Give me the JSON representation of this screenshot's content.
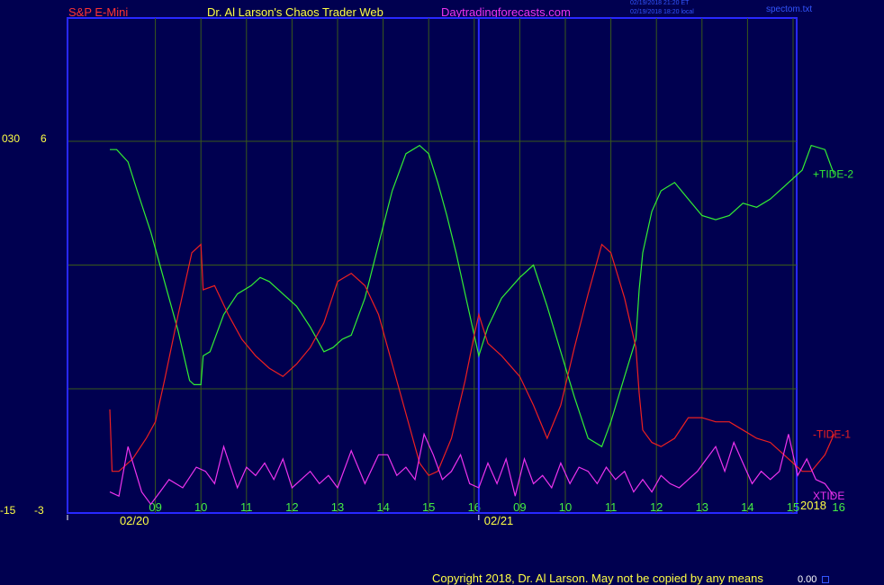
{
  "header": {
    "symbol": "S&P E-Mini",
    "author": "Dr. Al Larson's Chaos Trader Web",
    "site": "Daytradingforecasts.com",
    "timestamp_et": "02/19/2018 21:20 ET",
    "timestamp_local": "02/19/2018 18:20 local",
    "filename": "spectom.txt"
  },
  "left_labels": {
    "top_left": "030",
    "top_right": "6",
    "bottom_left": "-15",
    "bottom_right": "-3"
  },
  "footer": {
    "copyright": "Copyright 2018, Dr. Al Larson. May not be copied by any means",
    "value": "0.00"
  },
  "colors": {
    "background": "#000050",
    "frame": "#2828ff",
    "grid": "#3a5a1a",
    "tide2": "#33ee33",
    "tide1": "#ee2020",
    "xtide": "#ee33ee",
    "axis_text": "#44ee44",
    "label_text": "#ffff44"
  },
  "chart_data": {
    "type": "line",
    "ylim": [
      -3,
      6
    ],
    "xlim": [
      0,
      16.3
    ],
    "x_ticks": [
      {
        "x": 1,
        "label": "09"
      },
      {
        "x": 2,
        "label": "10"
      },
      {
        "x": 3,
        "label": "11"
      },
      {
        "x": 4,
        "label": "12"
      },
      {
        "x": 5,
        "label": "13"
      },
      {
        "x": 6,
        "label": "14"
      },
      {
        "x": 7,
        "label": "15"
      },
      {
        "x": 8,
        "label": "16"
      },
      {
        "x": 9,
        "label": "09"
      },
      {
        "x": 10,
        "label": "10"
      },
      {
        "x": 11,
        "label": "11"
      },
      {
        "x": 12,
        "label": "12"
      },
      {
        "x": 13,
        "label": "13"
      },
      {
        "x": 14,
        "label": "14"
      },
      {
        "x": 15,
        "label": "15"
      },
      {
        "x": 16,
        "label": "16"
      }
    ],
    "date_labels": [
      {
        "x": 0.75,
        "label": "02/20"
      },
      {
        "x": 8.75,
        "label": "02/21"
      }
    ],
    "year_label": "2018",
    "day_separators": [
      0,
      8.1
    ],
    "grid_y": [
      6,
      3,
      0
    ],
    "series": [
      {
        "name": "+TIDE-2",
        "color": "#33ee33",
        "x": [
          0,
          0.15,
          0.4,
          0.6,
          0.9,
          1.2,
          1.5,
          1.75,
          1.85,
          2.0,
          2.05,
          2.2,
          2.5,
          2.8,
          3.1,
          3.3,
          3.5,
          3.8,
          4.1,
          4.4,
          4.7,
          4.9,
          5.1,
          5.3,
          5.6,
          5.9,
          6.2,
          6.5,
          6.8,
          7.0,
          7.2,
          7.4,
          7.6,
          7.8,
          8.0,
          8.1,
          8.3,
          8.6,
          9.0,
          9.3,
          9.6,
          9.9,
          10.2,
          10.5,
          10.8,
          11.0,
          11.3,
          11.55,
          11.62,
          11.7,
          11.9,
          12.1,
          12.4,
          12.7,
          13.0,
          13.3,
          13.6,
          13.9,
          14.2,
          14.5,
          14.8,
          15.2,
          15.4,
          15.7,
          15.9
        ],
        "y": [
          5.8,
          5.8,
          5.5,
          4.8,
          3.8,
          2.6,
          1.4,
          0.2,
          0.1,
          0.1,
          0.8,
          0.9,
          1.8,
          2.3,
          2.5,
          2.7,
          2.6,
          2.3,
          2.0,
          1.5,
          0.9,
          1.0,
          1.2,
          1.3,
          2.2,
          3.5,
          4.8,
          5.7,
          5.9,
          5.7,
          5.0,
          4.2,
          3.3,
          2.3,
          1.3,
          0.8,
          1.5,
          2.2,
          2.7,
          3.0,
          2.0,
          0.9,
          -0.2,
          -1.2,
          -1.4,
          -0.8,
          0.3,
          1.2,
          2.4,
          3.3,
          4.3,
          4.8,
          5.0,
          4.6,
          4.2,
          4.1,
          4.2,
          4.5,
          4.4,
          4.6,
          4.9,
          5.3,
          5.9,
          5.8,
          5.2
        ],
        "label": "+TIDE-2"
      },
      {
        "name": "-TIDE-1",
        "color": "#ee2020",
        "x": [
          0,
          0.05,
          0.2,
          0.5,
          0.8,
          1.0,
          1.2,
          1.5,
          1.8,
          2.0,
          2.05,
          2.3,
          2.6,
          2.9,
          3.2,
          3.5,
          3.8,
          4.1,
          4.4,
          4.7,
          5.0,
          5.3,
          5.6,
          5.9,
          6.2,
          6.5,
          6.8,
          7.0,
          7.2,
          7.5,
          7.8,
          8.0,
          8.1,
          8.3,
          8.6,
          9.0,
          9.3,
          9.6,
          9.9,
          10.2,
          10.5,
          10.8,
          11.0,
          11.3,
          11.55,
          11.62,
          11.7,
          11.9,
          12.1,
          12.4,
          12.7,
          13.0,
          13.3,
          13.6,
          13.9,
          14.2,
          14.5,
          14.8,
          15.2,
          15.4,
          15.7,
          15.9
        ],
        "y": [
          -0.5,
          -2.0,
          -2.0,
          -1.7,
          -1.2,
          -0.8,
          0.2,
          1.8,
          3.3,
          3.5,
          2.4,
          2.5,
          1.8,
          1.2,
          0.8,
          0.5,
          0.3,
          0.6,
          1.0,
          1.6,
          2.6,
          2.8,
          2.5,
          1.8,
          0.6,
          -0.6,
          -1.8,
          -2.1,
          -2.0,
          -1.2,
          0.2,
          1.3,
          1.8,
          1.1,
          0.8,
          0.3,
          -0.4,
          -1.2,
          -0.4,
          1.0,
          2.3,
          3.5,
          3.3,
          2.2,
          1.0,
          -0.1,
          -1.0,
          -1.3,
          -1.4,
          -1.2,
          -0.7,
          -0.7,
          -0.8,
          -0.8,
          -1.0,
          -1.2,
          -1.3,
          -1.6,
          -2.0,
          -2.0,
          -1.6,
          -1.1
        ],
        "label": "-TIDE-1"
      },
      {
        "name": "XTIDE",
        "color": "#ee33ee",
        "x": [
          0,
          0.2,
          0.4,
          0.7,
          0.9,
          1.1,
          1.3,
          1.6,
          1.9,
          2.1,
          2.3,
          2.5,
          2.8,
          3.0,
          3.2,
          3.4,
          3.6,
          3.8,
          4.0,
          4.2,
          4.4,
          4.6,
          4.8,
          5.0,
          5.3,
          5.6,
          5.9,
          6.1,
          6.3,
          6.5,
          6.7,
          6.9,
          7.1,
          7.3,
          7.5,
          7.7,
          7.9,
          8.1,
          8.3,
          8.5,
          8.7,
          8.9,
          9.1,
          9.3,
          9.5,
          9.7,
          9.9,
          10.1,
          10.3,
          10.5,
          10.7,
          10.9,
          11.1,
          11.3,
          11.5,
          11.7,
          11.9,
          12.1,
          12.3,
          12.5,
          12.7,
          12.9,
          13.1,
          13.3,
          13.5,
          13.7,
          13.9,
          14.1,
          14.3,
          14.5,
          14.7,
          14.9,
          15.1,
          15.3,
          15.5,
          15.7,
          15.9
        ],
        "y": [
          -2.5,
          -2.6,
          -1.4,
          -2.5,
          -2.8,
          -2.5,
          -2.2,
          -2.4,
          -1.9,
          -2.0,
          -2.3,
          -1.4,
          -2.4,
          -1.9,
          -2.1,
          -1.8,
          -2.2,
          -1.7,
          -2.4,
          -2.2,
          -2.0,
          -2.3,
          -2.1,
          -2.4,
          -1.5,
          -2.3,
          -1.6,
          -1.6,
          -2.1,
          -1.9,
          -2.2,
          -1.1,
          -1.6,
          -2.2,
          -2.0,
          -1.6,
          -2.3,
          -2.4,
          -1.8,
          -2.3,
          -1.7,
          -2.6,
          -1.7,
          -2.3,
          -2.1,
          -2.4,
          -1.8,
          -2.3,
          -1.9,
          -2.0,
          -2.3,
          -1.9,
          -2.2,
          -2.0,
          -2.5,
          -2.2,
          -2.5,
          -2.1,
          -2.3,
          -2.4,
          -2.2,
          -2.0,
          -1.7,
          -1.4,
          -2.0,
          -1.3,
          -1.8,
          -2.3,
          -2.0,
          -2.2,
          -2.0,
          -1.1,
          -2.1,
          -1.7,
          -2.2,
          -2.3,
          -2.6
        ],
        "label": "XTIDE"
      }
    ]
  }
}
